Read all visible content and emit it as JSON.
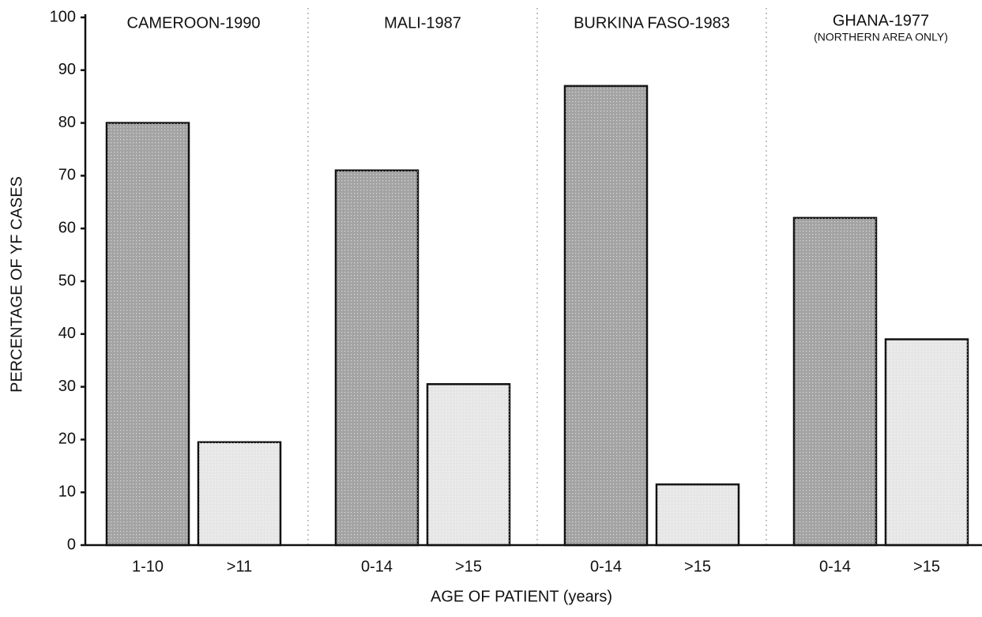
{
  "chart_data": {
    "type": "bar",
    "ylabel": "PERCENTAGE OF YF CASES",
    "xlabel": "AGE OF PATIENT (years)",
    "ylim": [
      0,
      100
    ],
    "yticks": [
      0,
      10,
      20,
      30,
      40,
      50,
      60,
      70,
      80,
      90,
      100
    ],
    "colors": [
      "#a3a3a3",
      "#e6e6e6"
    ],
    "groups": [
      {
        "name": "CAMEROON-1990",
        "categories": [
          "1-10",
          ">11"
        ],
        "values": [
          80,
          19.5
        ]
      },
      {
        "name": "MALI-1987",
        "categories": [
          "0-14",
          ">15"
        ],
        "values": [
          71,
          30.5
        ]
      },
      {
        "name": "BURKINA FASO-1983",
        "categories": [
          "0-14",
          ">15"
        ],
        "values": [
          87,
          11.5
        ]
      },
      {
        "name": "GHANA-1977",
        "note": "(NORTHERN AREA ONLY)",
        "categories": [
          "0-14",
          ">15"
        ],
        "values": [
          62,
          39
        ]
      }
    ]
  }
}
